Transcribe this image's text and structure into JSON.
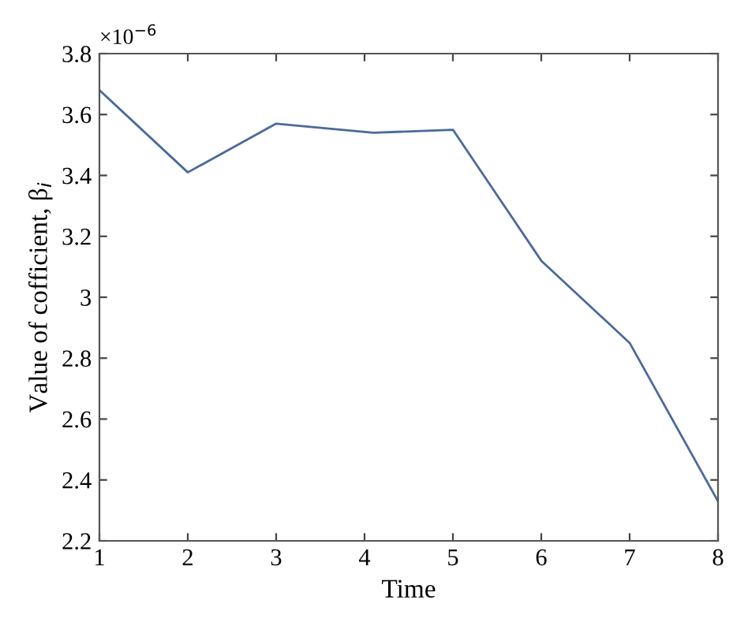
{
  "chart_data": {
    "type": "line",
    "xlabel": "Time",
    "ylabel": "Value of cofficient, β$_{i}$",
    "annotations": [
      "×10$^{−6}$"
    ],
    "x": [
      1,
      2,
      3,
      4.1,
      5,
      6,
      7,
      8
    ],
    "series": [
      {
        "color": "#4a6a9a",
        "values": [
          3.68,
          3.41,
          3.57,
          3.54,
          3.55,
          3.12,
          2.85,
          2.33
        ]
      }
    ],
    "xlim": [
      1,
      8
    ],
    "xticks": [
      1,
      2,
      3,
      4,
      5,
      6,
      7,
      8
    ],
    "ylim": [
      2.2,
      3.8
    ],
    "yticks": [
      2.2,
      2.4,
      2.6,
      2.8,
      3,
      3.2,
      3.4,
      3.6,
      3.8
    ],
    "grid": false,
    "legend": false,
    "marker": "none",
    "line_style": "solid"
  }
}
